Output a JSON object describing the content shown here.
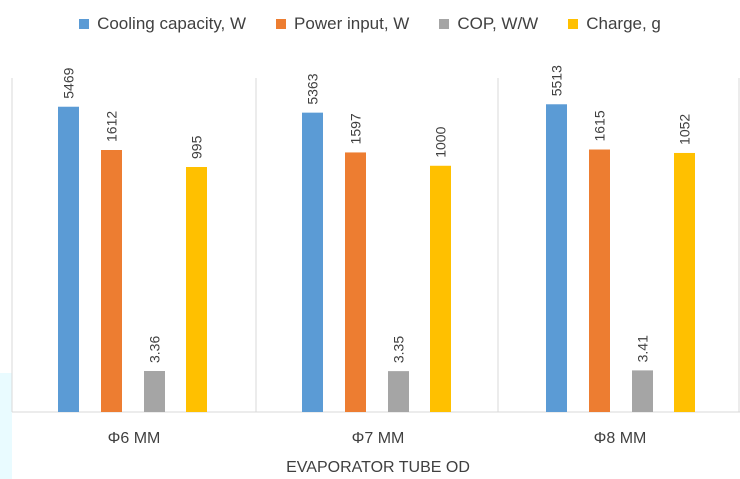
{
  "colors": {
    "cooling": "#5b9bd5",
    "power": "#ed7d31",
    "cop": "#a5a5a5",
    "charge": "#ffc000",
    "axis": "#d9d9d9",
    "text": "#404040"
  },
  "chart_data": {
    "type": "bar",
    "title": "",
    "xlabel": "EVAPORATOR TUBE OD",
    "ylabel": "",
    "categories": [
      "Φ6  MM",
      "Φ7  MM",
      "Φ8  MM"
    ],
    "series": [
      {
        "name": "Cooling capacity, W",
        "values": [
          5469,
          5363,
          5513
        ],
        "labels": [
          "5469",
          "5363",
          "5513"
        ],
        "color": "#5b9bd5"
      },
      {
        "name": "Power input, W",
        "values": [
          1612,
          1597,
          1615
        ],
        "labels": [
          "1612",
          "1597",
          "1615"
        ],
        "color": "#ed7d31"
      },
      {
        "name": "COP, W/W",
        "values": [
          3.36,
          3.35,
          3.41
        ],
        "labels": [
          "3.36",
          "3.35",
          "3.41"
        ],
        "color": "#a5a5a5"
      },
      {
        "name": "Charge, g",
        "values": [
          995,
          1000,
          1052
        ],
        "labels": [
          "995",
          "1000",
          "1052"
        ],
        "color": "#ffc000"
      }
    ],
    "legend_position": "top",
    "grid": false
  }
}
